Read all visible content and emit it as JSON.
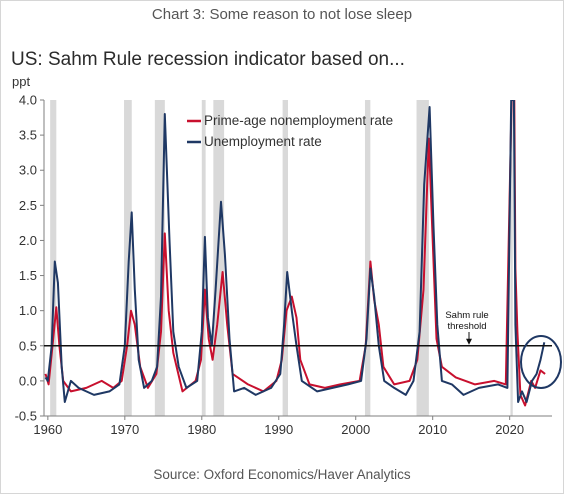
{
  "caption": "Chart 3: Some reason to not lose sleep",
  "source": "Source: Oxford Economics/Haver Analytics",
  "chart_data": {
    "type": "line",
    "title": "US: Sahm Rule recession indicator based on...",
    "ylabel": "ppt",
    "xlabel": "",
    "xlim": [
      1959.5,
      2025.5
    ],
    "ylim": [
      -0.5,
      4.0
    ],
    "x_ticks": [
      1960,
      1970,
      1980,
      1990,
      2000,
      2010,
      2020
    ],
    "y_ticks": [
      -0.5,
      0.0,
      0.5,
      1.0,
      1.5,
      2.0,
      2.5,
      3.0,
      3.5,
      4.0
    ],
    "y_tick_labels": [
      "-0.5",
      "0.0",
      "0.5",
      "1.0",
      "1.5",
      "2.0",
      "2.5",
      "3.0",
      "3.5",
      "4.0"
    ],
    "legend": {
      "placement": "top-center"
    },
    "threshold": {
      "value": 0.5,
      "label": [
        "Sahm rule",
        "threshold"
      ]
    },
    "recessions": [
      [
        1960.3,
        1961.1
      ],
      [
        1969.9,
        1970.9
      ],
      [
        1973.9,
        1975.2
      ],
      [
        1980.0,
        1980.5
      ],
      [
        1981.5,
        1982.9
      ],
      [
        1990.5,
        1991.2
      ],
      [
        2001.2,
        2001.9
      ],
      [
        2007.9,
        2009.5
      ],
      [
        2020.1,
        2020.4
      ]
    ],
    "series": [
      {
        "name": "Prime-age nonemployment rate",
        "color": "#c8102e",
        "points": [
          [
            1959.7,
            0.1
          ],
          [
            1960.1,
            -0.05
          ],
          [
            1960.6,
            0.5
          ],
          [
            1961.1,
            1.05
          ],
          [
            1961.5,
            0.5
          ],
          [
            1962.0,
            0.0
          ],
          [
            1963.0,
            -0.15
          ],
          [
            1965.0,
            -0.1
          ],
          [
            1967.0,
            0.0
          ],
          [
            1968.5,
            -0.1
          ],
          [
            1969.6,
            0.0
          ],
          [
            1970.3,
            0.5
          ],
          [
            1970.8,
            1.0
          ],
          [
            1971.3,
            0.8
          ],
          [
            1972.0,
            0.2
          ],
          [
            1973.0,
            -0.1
          ],
          [
            1974.1,
            0.1
          ],
          [
            1974.7,
            0.7
          ],
          [
            1975.2,
            2.1
          ],
          [
            1975.7,
            1.0
          ],
          [
            1976.3,
            0.4
          ],
          [
            1977.5,
            -0.15
          ],
          [
            1979.2,
            0.0
          ],
          [
            1979.9,
            0.3
          ],
          [
            1980.4,
            1.3
          ],
          [
            1980.9,
            0.6
          ],
          [
            1981.4,
            0.3
          ],
          [
            1982.0,
            0.8
          ],
          [
            1982.7,
            1.55
          ],
          [
            1983.3,
            0.8
          ],
          [
            1984.0,
            0.1
          ],
          [
            1986.0,
            -0.05
          ],
          [
            1988.0,
            -0.15
          ],
          [
            1989.7,
            0.0
          ],
          [
            1990.4,
            0.3
          ],
          [
            1991.0,
            1.0
          ],
          [
            1991.7,
            1.2
          ],
          [
            1992.3,
            0.9
          ],
          [
            1992.8,
            0.3
          ],
          [
            1994.0,
            -0.05
          ],
          [
            1996.0,
            -0.1
          ],
          [
            1998.0,
            -0.05
          ],
          [
            2000.5,
            0.0
          ],
          [
            2001.3,
            0.5
          ],
          [
            2001.9,
            1.7
          ],
          [
            2002.4,
            1.15
          ],
          [
            2003.0,
            0.8
          ],
          [
            2003.6,
            0.2
          ],
          [
            2005.0,
            -0.05
          ],
          [
            2007.0,
            0.0
          ],
          [
            2008.0,
            0.3
          ],
          [
            2008.8,
            1.3
          ],
          [
            2009.5,
            3.45
          ],
          [
            2010.0,
            2.0
          ],
          [
            2010.5,
            0.6
          ],
          [
            2011.2,
            0.2
          ],
          [
            2013.0,
            0.05
          ],
          [
            2015.5,
            -0.05
          ],
          [
            2018.0,
            0.0
          ],
          [
            2019.5,
            -0.05
          ],
          [
            2020.25,
            4.0
          ],
          [
            2020.6,
            4.0
          ],
          [
            2020.75,
            1.6
          ],
          [
            2021.0,
            0.7
          ],
          [
            2021.4,
            -0.2
          ],
          [
            2022.0,
            -0.35
          ],
          [
            2022.8,
            0.0
          ],
          [
            2023.3,
            -0.1
          ],
          [
            2024.0,
            0.15
          ],
          [
            2024.6,
            0.1
          ]
        ]
      },
      {
        "name": "Unemployment rate",
        "color": "#1f3864",
        "points": [
          [
            1959.7,
            0.05
          ],
          [
            1960.0,
            0.0
          ],
          [
            1960.5,
            0.5
          ],
          [
            1960.9,
            1.7
          ],
          [
            1961.3,
            1.4
          ],
          [
            1961.8,
            0.2
          ],
          [
            1962.2,
            -0.3
          ],
          [
            1963.0,
            0.0
          ],
          [
            1964.0,
            -0.1
          ],
          [
            1966.0,
            -0.2
          ],
          [
            1968.0,
            -0.15
          ],
          [
            1969.3,
            -0.05
          ],
          [
            1970.0,
            0.5
          ],
          [
            1970.5,
            1.7
          ],
          [
            1970.9,
            2.4
          ],
          [
            1971.3,
            1.3
          ],
          [
            1971.8,
            0.3
          ],
          [
            1972.5,
            -0.1
          ],
          [
            1973.5,
            0.0
          ],
          [
            1974.2,
            0.2
          ],
          [
            1974.7,
            1.2
          ],
          [
            1975.2,
            3.8
          ],
          [
            1975.8,
            2.0
          ],
          [
            1976.3,
            0.7
          ],
          [
            1977.0,
            0.2
          ],
          [
            1978.0,
            -0.1
          ],
          [
            1979.4,
            0.0
          ],
          [
            1980.0,
            0.7
          ],
          [
            1980.4,
            2.05
          ],
          [
            1980.8,
            0.9
          ],
          [
            1981.3,
            0.5
          ],
          [
            1981.8,
            1.3
          ],
          [
            1982.5,
            2.55
          ],
          [
            1983.0,
            1.8
          ],
          [
            1983.6,
            0.6
          ],
          [
            1984.2,
            -0.15
          ],
          [
            1985.5,
            -0.1
          ],
          [
            1987.0,
            -0.2
          ],
          [
            1989.0,
            -0.1
          ],
          [
            1990.2,
            0.1
          ],
          [
            1990.7,
            0.8
          ],
          [
            1991.1,
            1.55
          ],
          [
            1991.7,
            1.0
          ],
          [
            1992.3,
            0.5
          ],
          [
            1993.0,
            0.0
          ],
          [
            1995.0,
            -0.15
          ],
          [
            1997.0,
            -0.1
          ],
          [
            1999.0,
            -0.05
          ],
          [
            2000.7,
            0.0
          ],
          [
            2001.4,
            0.6
          ],
          [
            2001.9,
            1.6
          ],
          [
            2002.4,
            1.2
          ],
          [
            2003.0,
            0.5
          ],
          [
            2003.7,
            0.0
          ],
          [
            2005.0,
            -0.1
          ],
          [
            2006.5,
            -0.2
          ],
          [
            2007.5,
            0.0
          ],
          [
            2008.3,
            0.7
          ],
          [
            2008.9,
            2.8
          ],
          [
            2009.6,
            3.9
          ],
          [
            2010.1,
            2.2
          ],
          [
            2010.6,
            0.8
          ],
          [
            2011.2,
            0.0
          ],
          [
            2012.5,
            -0.05
          ],
          [
            2014.0,
            -0.2
          ],
          [
            2016.0,
            -0.1
          ],
          [
            2018.5,
            -0.05
          ],
          [
            2019.7,
            -0.1
          ],
          [
            2020.2,
            4.0
          ],
          [
            2020.55,
            4.0
          ],
          [
            2020.75,
            0.8
          ],
          [
            2021.1,
            -0.3
          ],
          [
            2021.6,
            -0.15
          ],
          [
            2022.2,
            -0.3
          ],
          [
            2022.9,
            0.0
          ],
          [
            2023.5,
            0.1
          ],
          [
            2024.0,
            0.3
          ],
          [
            2024.5,
            0.55
          ]
        ]
      }
    ]
  }
}
